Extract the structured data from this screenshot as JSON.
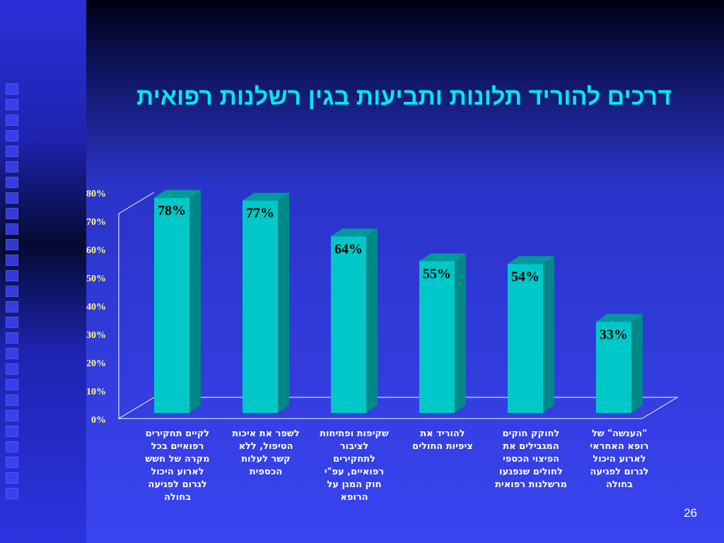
{
  "slide": {
    "title": "דרכים להוריד תלונות ותביעות בגין רשלנות רפואית",
    "page_number": "26"
  },
  "colors": {
    "bar_front": "#00c8c8",
    "bar_side": "#008888",
    "bar_top": "#009a9a",
    "tick_text": "#ffff80",
    "title": "#00e8f0"
  },
  "chart_data": {
    "type": "bar",
    "title": "",
    "xlabel": "",
    "ylabel": "",
    "ylim": [
      0,
      80
    ],
    "yticks": [
      0,
      10,
      20,
      30,
      40,
      50,
      60,
      70,
      80
    ],
    "ytick_labels": [
      "0%",
      "10%",
      "20%",
      "30%",
      "40%",
      "50%",
      "60%",
      "70%",
      "80%"
    ],
    "grid": false,
    "categories": [
      "לקיים תחקירים\nרפואיים בכל\nמקרה של חשש\nלארוע היכול\nלגרום לפגיעה\nבחולה",
      "לשפר את איכות\nהטיפול, ללא\nקשר לעלות\nהכספית",
      "שקיפות ופתיחות\nלציבור\nלתחקירים\nרפואיים, עפ\"י\nחוק המגן על\nהרופא",
      "להוריד את\nציפיות החולים",
      "לחוקק חוקים\nהמגבילים את\nהפיצוי הכספי\nלחולים שנפגעו\nמרשלנות רפואית",
      "\"הענשה\" של\nרופא האחראי\nלארוע היכול\nלגרום לפגיעה\nבחולה"
    ],
    "values": [
      78,
      77,
      64,
      55,
      54,
      33
    ],
    "value_labels": [
      "78%",
      "77%",
      "64%",
      "55%",
      "54%",
      "33%"
    ]
  }
}
